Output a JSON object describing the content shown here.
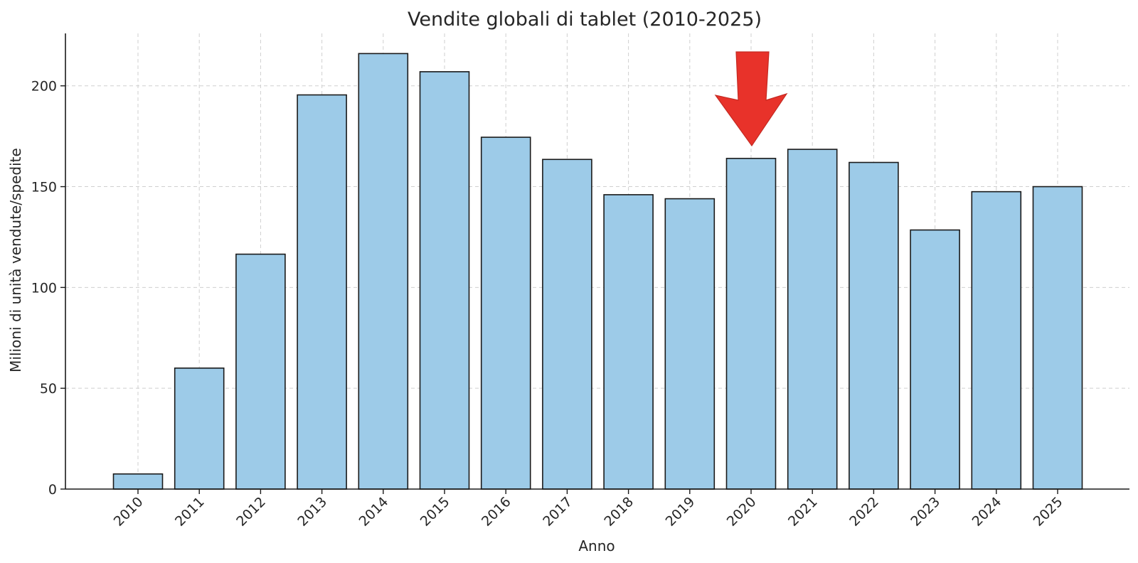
{
  "chart_data": {
    "type": "bar",
    "title": "Vendite globali di tablet (2010-2025)",
    "xlabel": "Anno",
    "ylabel": "Milioni di unità vendute/spedite",
    "categories": [
      "2010",
      "2011",
      "2012",
      "2013",
      "2014",
      "2015",
      "2016",
      "2017",
      "2018",
      "2019",
      "2020",
      "2021",
      "2022",
      "2023",
      "2024",
      "2025"
    ],
    "values": [
      7.5,
      60,
      116.5,
      195.5,
      216,
      207,
      174.5,
      163.5,
      146,
      144,
      164,
      168.5,
      162,
      128.5,
      147.5,
      150
    ],
    "ylim": [
      0,
      226
    ],
    "yticks": [
      0,
      50,
      100,
      150,
      200
    ],
    "grid": true,
    "bar_color": "#9dcbe8",
    "annotation": {
      "type": "arrow",
      "target_category": "2020",
      "color": "#e8322a",
      "direction": "down"
    }
  }
}
